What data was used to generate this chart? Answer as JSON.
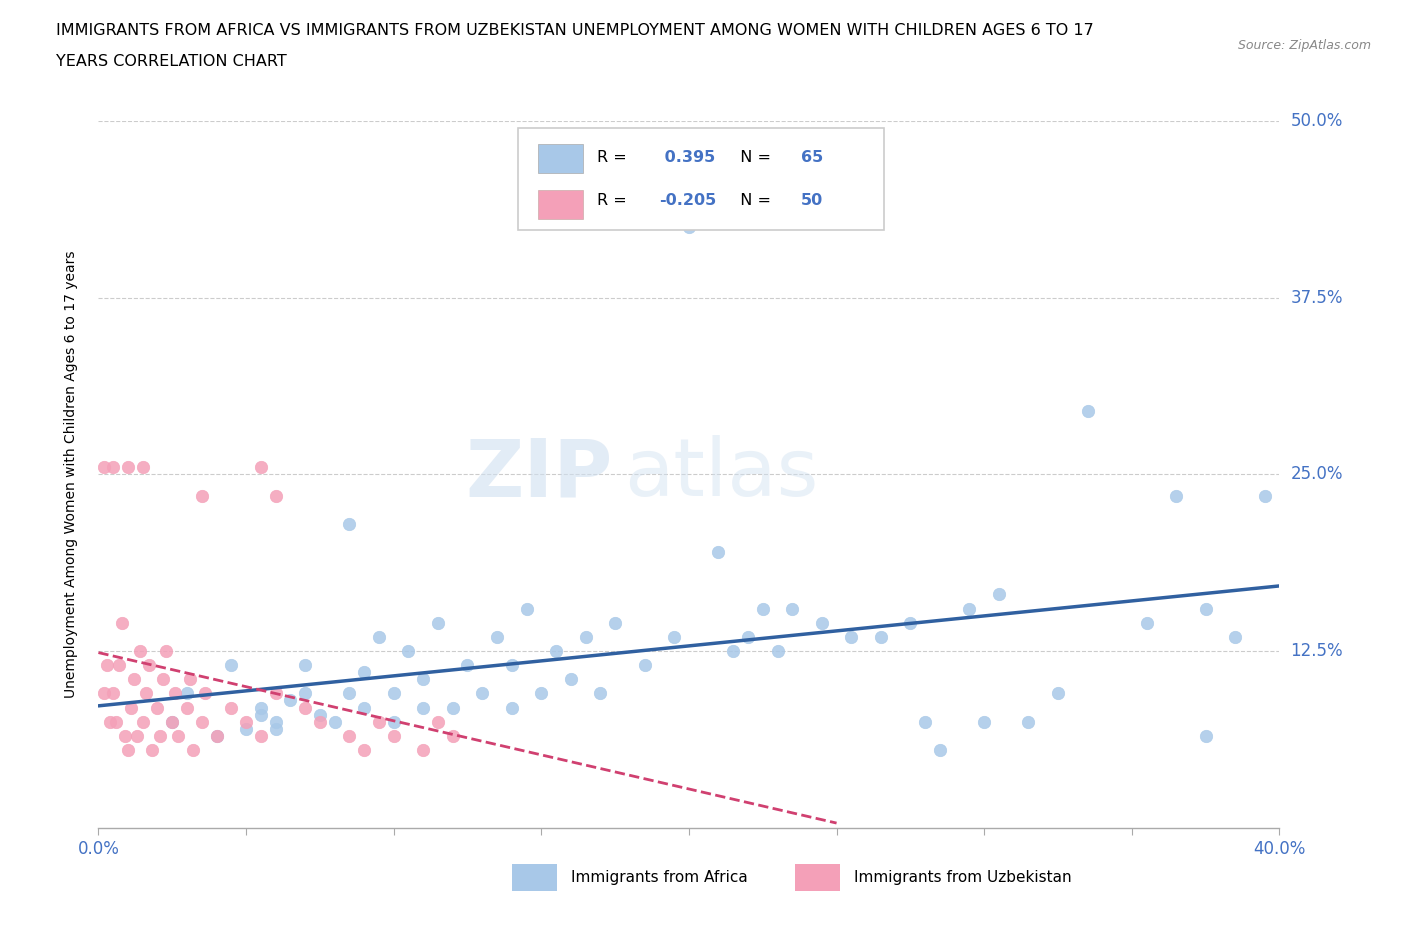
{
  "title_line1": "IMMIGRANTS FROM AFRICA VS IMMIGRANTS FROM UZBEKISTAN UNEMPLOYMENT AMONG WOMEN WITH CHILDREN AGES 6 TO 17",
  "title_line2": "YEARS CORRELATION CHART",
  "source_text": "Source: ZipAtlas.com",
  "ylabel": "Unemployment Among Women with Children Ages 6 to 17 years",
  "xlim": [
    0.0,
    0.4
  ],
  "ylim": [
    0.0,
    0.5
  ],
  "ytick_positions": [
    0.0,
    0.125,
    0.25,
    0.375,
    0.5
  ],
  "ytick_labels_right": [
    "",
    "12.5%",
    "25.0%",
    "37.5%",
    "50.0%"
  ],
  "R_africa": 0.395,
  "N_africa": 65,
  "R_uzbekistan": -0.205,
  "N_uzbekistan": 50,
  "color_africa": "#a8c8e8",
  "color_uzbekistan": "#f4a0b8",
  "trendline_africa_color": "#3060a0",
  "trendline_uzbekistan_color": "#d04070",
  "africa_x": [
    0.025,
    0.03,
    0.04,
    0.045,
    0.05,
    0.055,
    0.055,
    0.06,
    0.06,
    0.065,
    0.07,
    0.07,
    0.075,
    0.08,
    0.085,
    0.085,
    0.09,
    0.09,
    0.095,
    0.1,
    0.1,
    0.105,
    0.11,
    0.11,
    0.115,
    0.12,
    0.125,
    0.13,
    0.135,
    0.14,
    0.14,
    0.145,
    0.15,
    0.155,
    0.16,
    0.165,
    0.17,
    0.175,
    0.185,
    0.195,
    0.2,
    0.21,
    0.215,
    0.22,
    0.225,
    0.23,
    0.235,
    0.245,
    0.255,
    0.265,
    0.275,
    0.28,
    0.285,
    0.295,
    0.3,
    0.305,
    0.315,
    0.325,
    0.335,
    0.355,
    0.365,
    0.375,
    0.385,
    0.395,
    0.375
  ],
  "africa_y": [
    0.075,
    0.095,
    0.065,
    0.115,
    0.07,
    0.08,
    0.085,
    0.07,
    0.075,
    0.09,
    0.095,
    0.115,
    0.08,
    0.075,
    0.095,
    0.215,
    0.085,
    0.11,
    0.135,
    0.075,
    0.095,
    0.125,
    0.085,
    0.105,
    0.145,
    0.085,
    0.115,
    0.095,
    0.135,
    0.085,
    0.115,
    0.155,
    0.095,
    0.125,
    0.105,
    0.135,
    0.095,
    0.145,
    0.115,
    0.135,
    0.425,
    0.195,
    0.125,
    0.135,
    0.155,
    0.125,
    0.155,
    0.145,
    0.135,
    0.135,
    0.145,
    0.075,
    0.055,
    0.155,
    0.075,
    0.165,
    0.075,
    0.095,
    0.295,
    0.145,
    0.235,
    0.155,
    0.135,
    0.235,
    0.065
  ],
  "uzbekistan_x": [
    0.002,
    0.003,
    0.004,
    0.005,
    0.006,
    0.007,
    0.008,
    0.009,
    0.01,
    0.011,
    0.012,
    0.013,
    0.014,
    0.015,
    0.016,
    0.017,
    0.018,
    0.02,
    0.021,
    0.022,
    0.023,
    0.025,
    0.026,
    0.027,
    0.03,
    0.031,
    0.032,
    0.035,
    0.036,
    0.04,
    0.045,
    0.05,
    0.055,
    0.06,
    0.07,
    0.075,
    0.085,
    0.09,
    0.095,
    0.1,
    0.11,
    0.115,
    0.12,
    0.055,
    0.06,
    0.035,
    0.015,
    0.01,
    0.005,
    0.002
  ],
  "uzbekistan_y": [
    0.095,
    0.115,
    0.075,
    0.095,
    0.075,
    0.115,
    0.145,
    0.065,
    0.055,
    0.085,
    0.105,
    0.065,
    0.125,
    0.075,
    0.095,
    0.115,
    0.055,
    0.085,
    0.065,
    0.105,
    0.125,
    0.075,
    0.095,
    0.065,
    0.085,
    0.105,
    0.055,
    0.075,
    0.095,
    0.065,
    0.085,
    0.075,
    0.065,
    0.095,
    0.085,
    0.075,
    0.065,
    0.055,
    0.075,
    0.065,
    0.055,
    0.075,
    0.065,
    0.255,
    0.235,
    0.235,
    0.255,
    0.255,
    0.255,
    0.255
  ],
  "background_color": "#ffffff",
  "grid_color": "#cccccc",
  "marker_size": 80
}
